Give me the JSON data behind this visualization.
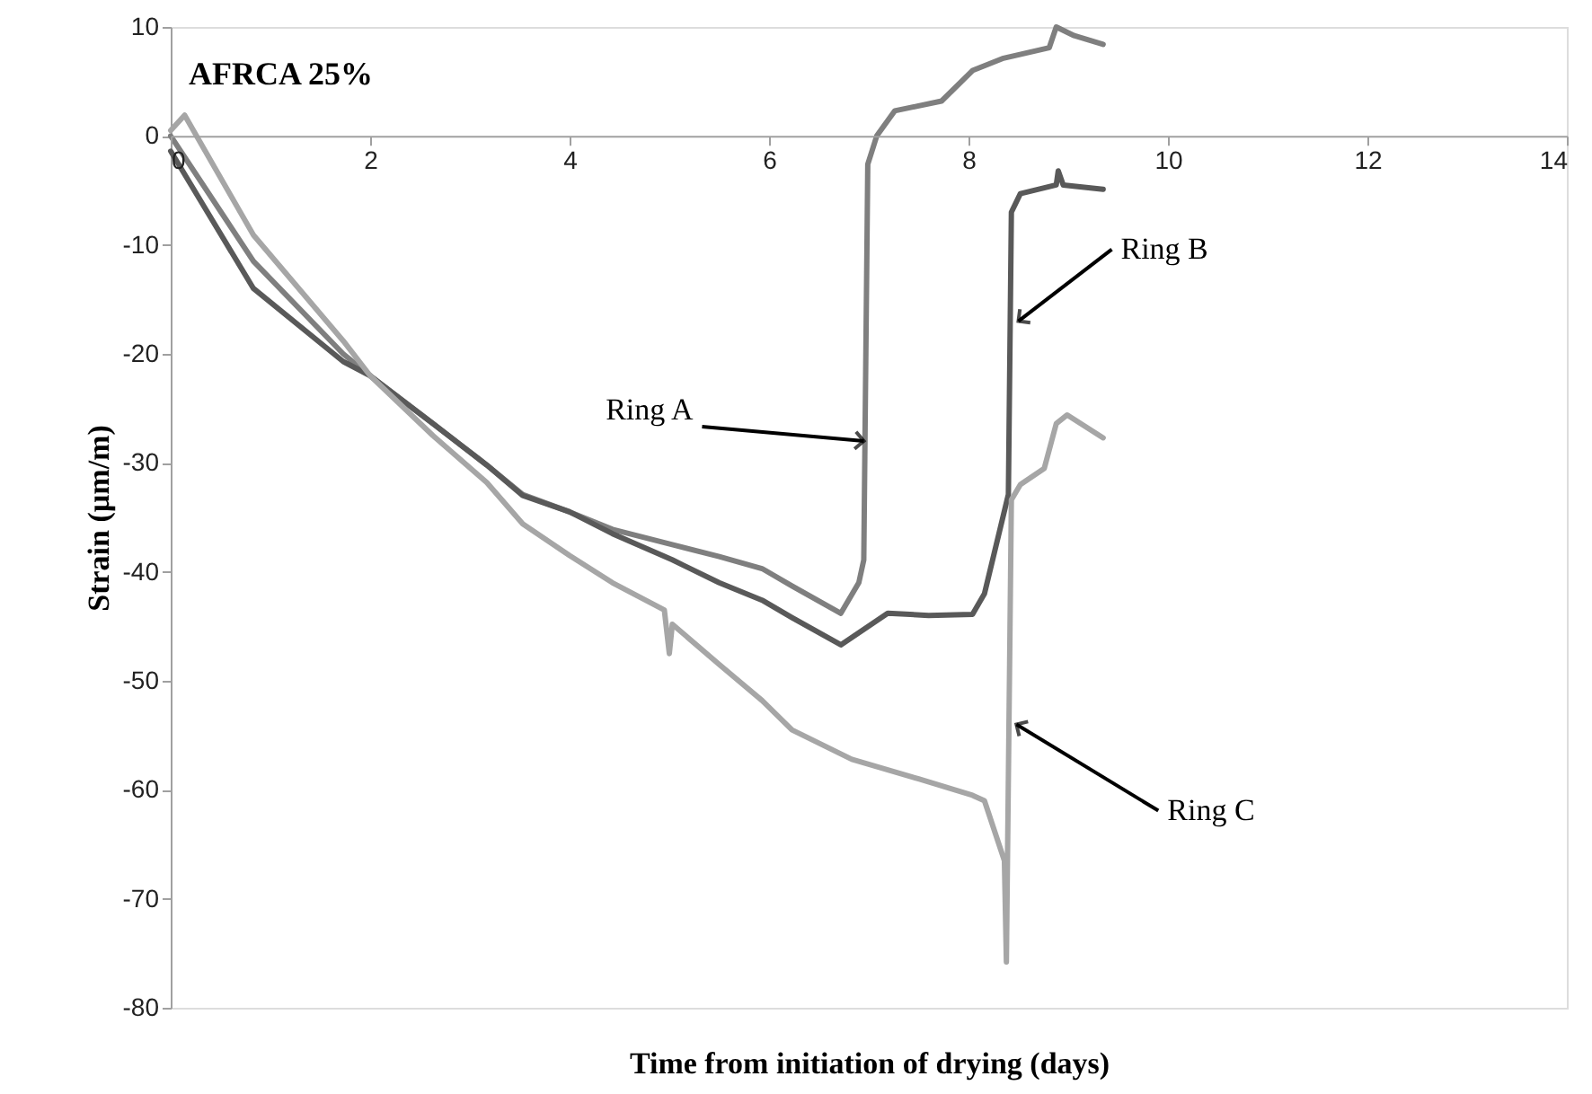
{
  "chart_data": {
    "type": "line",
    "xlabel": "Time from initiation of drying (days)",
    "ylabel": "Strain (µm/m)",
    "xlim": [
      0,
      14
    ],
    "xticks": [
      0,
      2,
      4,
      6,
      8,
      10,
      12,
      14
    ],
    "ylim": [
      -80,
      10
    ],
    "yticks": [
      -80,
      -70,
      -60,
      -50,
      -40,
      -30,
      -20,
      -10,
      0,
      10
    ],
    "grid": false,
    "marker": "none",
    "line_style": "solid",
    "annotations": [
      "AFRCA 25%",
      {
        "text": "Ring A",
        "x": 6.95,
        "y": -28
      },
      {
        "text": "Ring B",
        "x": 8.5,
        "y": -17
      },
      {
        "text": "Ring C",
        "x": 8.48,
        "y": -54
      }
    ],
    "series": [
      {
        "color": "#7f7f7f",
        "x": [
          0,
          0.83,
          1.73,
          2,
          2.63,
          3.17,
          3.53,
          4,
          4.43,
          5.03,
          5.5,
          5.93,
          6.23,
          6.72,
          6.9,
          6.95,
          6.99,
          7.08,
          7.26,
          7.73,
          8.04,
          8.34,
          8.81,
          8.88,
          9.06,
          9.35
        ],
        "values": [
          0,
          -11.5,
          -20,
          -22,
          -26.4,
          -30.2,
          -32.9,
          -34.5,
          -36.1,
          -37.5,
          -38.6,
          -39.7,
          -41.3,
          -43.8,
          -41,
          -38.9,
          -2.6,
          0,
          2.3,
          3.2,
          6,
          7.1,
          8.1,
          10,
          9.2,
          8.4
        ]
      },
      {
        "color": "#595959",
        "x": [
          0,
          0.83,
          1.73,
          2,
          2.63,
          3.17,
          3.53,
          4,
          4.43,
          5.03,
          5.5,
          5.93,
          6.23,
          6.72,
          7.19,
          7.6,
          8.04,
          8.16,
          8.4,
          8.43,
          8.52,
          8.88,
          8.9,
          8.95,
          9.35
        ],
        "values": [
          -1.4,
          -14,
          -20.7,
          -22,
          -26.4,
          -30.2,
          -33,
          -34.5,
          -36.5,
          -38.9,
          -41,
          -42.6,
          -44.2,
          -46.7,
          -43.8,
          -44,
          -43.9,
          -42,
          -32.9,
          -7,
          -5.3,
          -4.5,
          -3.2,
          -4.5,
          -4.9
        ]
      },
      {
        "color": "#a6a6a6",
        "x": [
          0,
          0.14,
          0.83,
          1.73,
          2,
          2.63,
          3.17,
          3.53,
          4,
          4.43,
          4.95,
          5.0,
          5.03,
          5.5,
          5.93,
          6.23,
          6.83,
          7.5,
          8.04,
          8.16,
          8.36,
          8.38,
          8.43,
          8.52,
          8.76,
          8.88,
          8.99,
          9.35
        ],
        "values": [
          0.5,
          1.9,
          -9.1,
          -18.8,
          -22,
          -27.5,
          -31.8,
          -35.6,
          -38.5,
          -41,
          -43.5,
          -47.5,
          -44.8,
          -48.5,
          -51.8,
          -54.5,
          -57.2,
          -59,
          -60.5,
          -61,
          -66.5,
          -75.8,
          -33.4,
          -32,
          -30.5,
          -26.4,
          -25.6,
          -27.7
        ]
      }
    ]
  }
}
